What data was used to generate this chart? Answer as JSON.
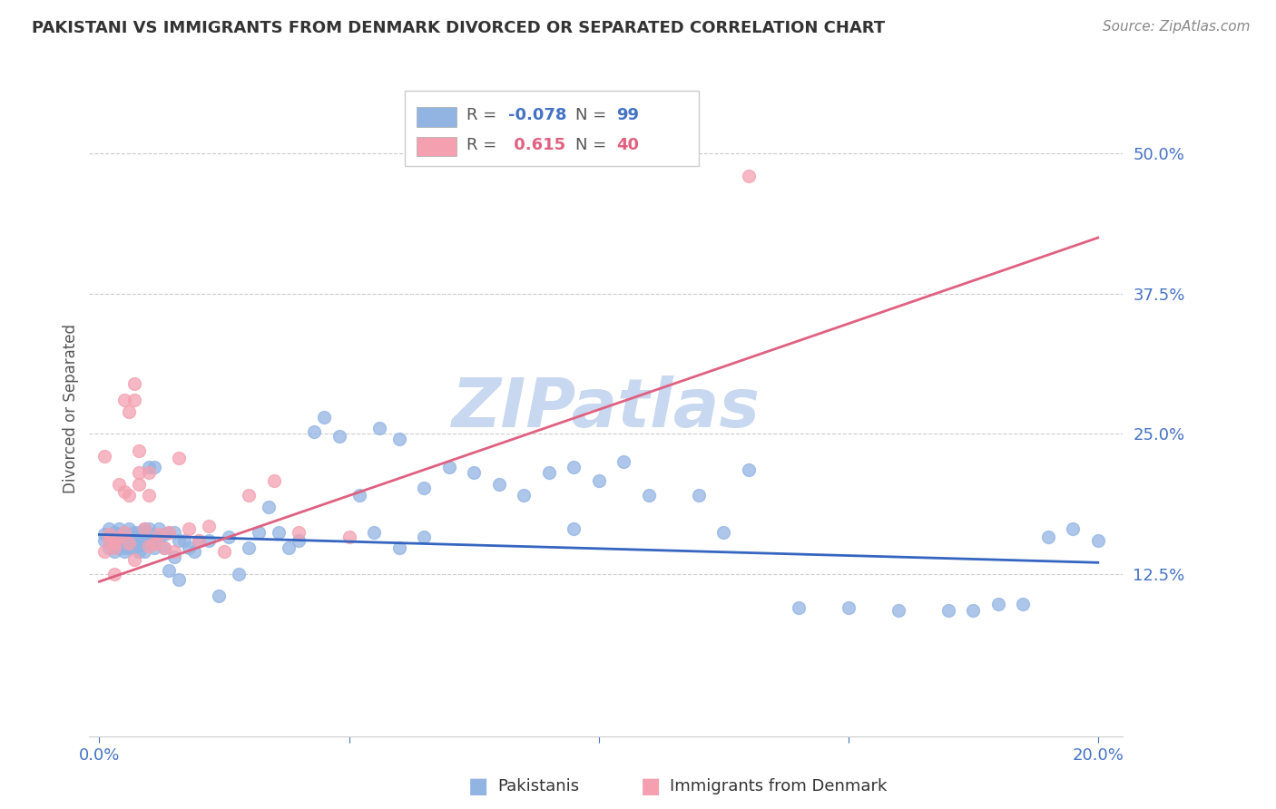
{
  "title": "PAKISTANI VS IMMIGRANTS FROM DENMARK DIVORCED OR SEPARATED CORRELATION CHART",
  "source": "Source: ZipAtlas.com",
  "xlabel_pakistanis": "Pakistanis",
  "xlabel_immigrants": "Immigrants from Denmark",
  "ylabel": "Divorced or Separated",
  "xlim": [
    -0.002,
    0.205
  ],
  "ylim": [
    -0.02,
    0.565
  ],
  "xticks": [
    0.0,
    0.05,
    0.1,
    0.15,
    0.2
  ],
  "xtick_labels": [
    "0.0%",
    "",
    "",
    "",
    "20.0%"
  ],
  "yticks": [
    0.125,
    0.25,
    0.375,
    0.5
  ],
  "ytick_labels": [
    "12.5%",
    "25.0%",
    "37.5%",
    "50.0%"
  ],
  "blue_color": "#92b4e3",
  "pink_color": "#f4a0b0",
  "blue_line_color": "#3565c0",
  "pink_line_color": "#e06080",
  "legend_R_blue": "-0.078",
  "legend_N_blue": "99",
  "legend_R_pink": "0.615",
  "legend_N_pink": "40",
  "watermark": "ZIPatlas",
  "watermark_color": "#c8d8f0",
  "blue_scatter_x": [
    0.001,
    0.001,
    0.002,
    0.002,
    0.002,
    0.003,
    0.003,
    0.003,
    0.003,
    0.004,
    0.004,
    0.004,
    0.004,
    0.004,
    0.005,
    0.005,
    0.005,
    0.005,
    0.005,
    0.005,
    0.006,
    0.006,
    0.006,
    0.006,
    0.007,
    0.007,
    0.007,
    0.007,
    0.008,
    0.008,
    0.008,
    0.008,
    0.009,
    0.009,
    0.009,
    0.009,
    0.01,
    0.01,
    0.01,
    0.011,
    0.011,
    0.011,
    0.012,
    0.012,
    0.013,
    0.013,
    0.014,
    0.014,
    0.015,
    0.015,
    0.016,
    0.016,
    0.017,
    0.018,
    0.019,
    0.02,
    0.022,
    0.024,
    0.026,
    0.028,
    0.03,
    0.032,
    0.034,
    0.036,
    0.038,
    0.04,
    0.043,
    0.045,
    0.048,
    0.052,
    0.056,
    0.06,
    0.065,
    0.07,
    0.075,
    0.08,
    0.085,
    0.09,
    0.095,
    0.1,
    0.105,
    0.11,
    0.12,
    0.13,
    0.14,
    0.15,
    0.16,
    0.17,
    0.175,
    0.18,
    0.055,
    0.06,
    0.065,
    0.095,
    0.125,
    0.185,
    0.19,
    0.195,
    0.2
  ],
  "blue_scatter_y": [
    0.16,
    0.155,
    0.158,
    0.165,
    0.148,
    0.15,
    0.162,
    0.145,
    0.155,
    0.152,
    0.16,
    0.148,
    0.155,
    0.165,
    0.148,
    0.155,
    0.158,
    0.162,
    0.145,
    0.15,
    0.152,
    0.158,
    0.165,
    0.148,
    0.155,
    0.162,
    0.148,
    0.158,
    0.155,
    0.162,
    0.15,
    0.145,
    0.158,
    0.165,
    0.152,
    0.145,
    0.16,
    0.22,
    0.165,
    0.22,
    0.155,
    0.148,
    0.158,
    0.165,
    0.16,
    0.148,
    0.162,
    0.128,
    0.14,
    0.162,
    0.12,
    0.155,
    0.155,
    0.148,
    0.145,
    0.155,
    0.155,
    0.105,
    0.158,
    0.125,
    0.148,
    0.162,
    0.185,
    0.162,
    0.148,
    0.155,
    0.252,
    0.265,
    0.248,
    0.195,
    0.255,
    0.245,
    0.202,
    0.22,
    0.215,
    0.205,
    0.195,
    0.215,
    0.22,
    0.208,
    0.225,
    0.195,
    0.195,
    0.218,
    0.095,
    0.095,
    0.092,
    0.092,
    0.092,
    0.098,
    0.162,
    0.148,
    0.158,
    0.165,
    0.162,
    0.098,
    0.158,
    0.165,
    0.155
  ],
  "pink_scatter_x": [
    0.001,
    0.001,
    0.002,
    0.002,
    0.003,
    0.003,
    0.003,
    0.004,
    0.004,
    0.005,
    0.005,
    0.006,
    0.006,
    0.007,
    0.007,
    0.008,
    0.008,
    0.009,
    0.01,
    0.01,
    0.011,
    0.012,
    0.013,
    0.014,
    0.015,
    0.016,
    0.018,
    0.02,
    0.022,
    0.025,
    0.03,
    0.035,
    0.04,
    0.05,
    0.005,
    0.006,
    0.007,
    0.008,
    0.01,
    0.13
  ],
  "pink_scatter_y": [
    0.145,
    0.23,
    0.155,
    0.16,
    0.152,
    0.148,
    0.125,
    0.158,
    0.205,
    0.162,
    0.198,
    0.152,
    0.195,
    0.28,
    0.138,
    0.205,
    0.215,
    0.165,
    0.15,
    0.195,
    0.152,
    0.16,
    0.148,
    0.162,
    0.145,
    0.228,
    0.165,
    0.155,
    0.168,
    0.145,
    0.195,
    0.208,
    0.162,
    0.158,
    0.28,
    0.27,
    0.295,
    0.235,
    0.215,
    0.48
  ],
  "blue_trend_x": [
    0.0,
    0.2
  ],
  "blue_trend_y": [
    0.16,
    0.135
  ],
  "pink_trend_x": [
    0.0,
    0.2
  ],
  "pink_trend_y": [
    0.118,
    0.425
  ]
}
